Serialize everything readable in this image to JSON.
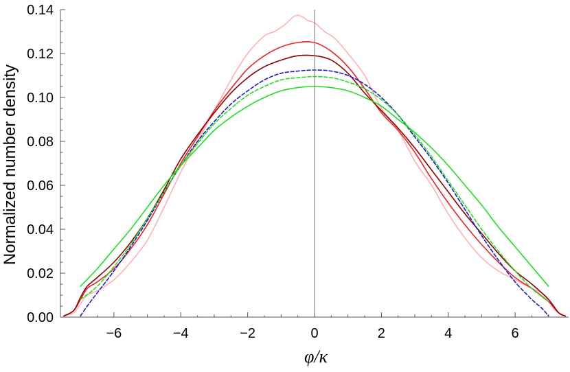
{
  "chart_data": {
    "type": "line",
    "title": "",
    "xlabel": "φ/κ",
    "ylabel": "Normalized number density",
    "xlim": [
      -7.6,
      7.6
    ],
    "ylim": [
      0.0,
      0.14
    ],
    "x_ticks": [
      -6,
      -4,
      -2,
      0,
      2,
      4,
      6
    ],
    "x_tick_labels": [
      "−6",
      "−4",
      "−2",
      "0",
      "2",
      "4",
      "6"
    ],
    "y_ticks": [
      0.0,
      0.02,
      0.04,
      0.06,
      0.08,
      0.1,
      0.12,
      0.14
    ],
    "y_tick_labels": [
      "0.00",
      "0.02",
      "0.04",
      "0.06",
      "0.08",
      "0.10",
      "0.12",
      "0.14"
    ],
    "grid": false,
    "legend": "none",
    "series": [
      {
        "color": "#ffb0b0",
        "dash": "solid",
        "x": [
          -7.5,
          -7.2,
          -7.0,
          -6.8,
          -6.5,
          -6.0,
          -5.5,
          -5.0,
          -4.5,
          -4.0,
          -3.5,
          -3.0,
          -2.5,
          -2.0,
          -1.5,
          -1.2,
          -0.9,
          -0.6,
          -0.4,
          -0.2,
          0.0,
          0.3,
          0.6,
          1.0,
          1.5,
          2.0,
          2.5,
          3.0,
          3.5,
          4.0,
          4.5,
          5.0,
          5.5,
          6.0,
          6.5,
          6.8,
          7.0,
          7.2,
          7.5
        ],
        "y": [
          0.0005,
          0.002,
          0.006,
          0.01,
          0.012,
          0.017,
          0.025,
          0.035,
          0.05,
          0.066,
          0.08,
          0.094,
          0.108,
          0.12,
          0.128,
          0.13,
          0.133,
          0.137,
          0.137,
          0.135,
          0.134,
          0.13,
          0.127,
          0.12,
          0.11,
          0.095,
          0.085,
          0.071,
          0.06,
          0.047,
          0.036,
          0.027,
          0.021,
          0.017,
          0.013,
          0.011,
          0.008,
          0.003,
          0.0005
        ]
      },
      {
        "color": "#ee2222",
        "dash": "solid",
        "x": [
          -7.5,
          -7.2,
          -7.0,
          -6.8,
          -6.5,
          -6.0,
          -5.5,
          -5.0,
          -4.5,
          -4.0,
          -3.5,
          -3.0,
          -2.5,
          -2.0,
          -1.5,
          -1.0,
          -0.5,
          0.0,
          0.5,
          1.0,
          1.5,
          2.0,
          2.5,
          3.0,
          3.5,
          4.0,
          4.5,
          5.0,
          5.5,
          6.0,
          6.5,
          7.0,
          7.3,
          7.5
        ],
        "y": [
          0.0005,
          0.003,
          0.008,
          0.013,
          0.016,
          0.022,
          0.031,
          0.042,
          0.056,
          0.07,
          0.082,
          0.094,
          0.104,
          0.113,
          0.119,
          0.123,
          0.125,
          0.125,
          0.121,
          0.114,
          0.104,
          0.093,
          0.085,
          0.075,
          0.063,
          0.052,
          0.042,
          0.033,
          0.025,
          0.018,
          0.013,
          0.007,
          0.002,
          0.0005
        ]
      },
      {
        "color": "#8b0000",
        "dash": "solid",
        "x": [
          -7.5,
          -7.2,
          -7.0,
          -6.8,
          -6.5,
          -6.0,
          -5.5,
          -5.0,
          -4.5,
          -4.0,
          -3.5,
          -3.0,
          -2.5,
          -2.0,
          -1.5,
          -1.0,
          -0.5,
          0.0,
          0.5,
          1.0,
          1.5,
          2.0,
          2.5,
          3.0,
          3.5,
          4.0,
          4.5,
          5.0,
          5.5,
          6.0,
          6.5,
          7.0,
          7.3,
          7.5
        ],
        "y": [
          0.0005,
          0.003,
          0.009,
          0.014,
          0.018,
          0.025,
          0.034,
          0.045,
          0.058,
          0.072,
          0.083,
          0.093,
          0.102,
          0.109,
          0.114,
          0.117,
          0.119,
          0.119,
          0.117,
          0.111,
          0.102,
          0.094,
          0.086,
          0.077,
          0.067,
          0.057,
          0.047,
          0.038,
          0.029,
          0.021,
          0.015,
          0.008,
          0.002,
          0.0005
        ]
      },
      {
        "color": "#1a1acc",
        "dash": "dashed",
        "x": [
          -7.0,
          -6.8,
          -6.5,
          -6.0,
          -5.5,
          -5.0,
          -4.5,
          -4.0,
          -3.5,
          -3.0,
          -2.5,
          -2.0,
          -1.5,
          -1.0,
          -0.5,
          0.0,
          0.5,
          1.0,
          1.5,
          2.0,
          2.5,
          3.0,
          3.5,
          4.0,
          4.5,
          5.0,
          5.5,
          6.0,
          6.5,
          6.8,
          7.0
        ],
        "y": [
          0.0005,
          0.005,
          0.011,
          0.021,
          0.032,
          0.044,
          0.057,
          0.069,
          0.08,
          0.089,
          0.097,
          0.103,
          0.108,
          0.111,
          0.112,
          0.1125,
          0.112,
          0.11,
          0.106,
          0.1,
          0.092,
          0.082,
          0.072,
          0.061,
          0.049,
          0.037,
          0.026,
          0.016,
          0.008,
          0.004,
          0.0005
        ]
      },
      {
        "color": "#22dd22",
        "dash": "dashed",
        "x": [
          -7.0,
          -6.5,
          -6.0,
          -5.5,
          -5.0,
          -4.5,
          -4.0,
          -3.5,
          -3.0,
          -2.5,
          -2.0,
          -1.5,
          -1.0,
          -0.5,
          0.0,
          0.5,
          1.0,
          1.5,
          2.0,
          2.5,
          3.0,
          3.5,
          4.0,
          4.5,
          5.0,
          5.5,
          6.0,
          6.5,
          7.0
        ],
        "y": [
          0.008,
          0.014,
          0.023,
          0.033,
          0.045,
          0.057,
          0.069,
          0.079,
          0.088,
          0.095,
          0.101,
          0.105,
          0.108,
          0.109,
          0.1095,
          0.109,
          0.107,
          0.104,
          0.099,
          0.092,
          0.083,
          0.073,
          0.062,
          0.051,
          0.04,
          0.03,
          0.021,
          0.013,
          0.007
        ]
      },
      {
        "color": "#22dd22",
        "dash": "solid",
        "x": [
          -7.0,
          -6.5,
          -6.0,
          -5.5,
          -5.0,
          -4.5,
          -4.0,
          -3.5,
          -3.0,
          -2.5,
          -2.0,
          -1.5,
          -1.0,
          -0.5,
          0.0,
          0.5,
          1.0,
          1.5,
          2.0,
          2.5,
          3.0,
          3.5,
          4.0,
          4.5,
          5.0,
          5.5,
          6.0,
          6.5,
          7.0
        ],
        "y": [
          0.014,
          0.022,
          0.031,
          0.04,
          0.05,
          0.06,
          0.069,
          0.077,
          0.085,
          0.091,
          0.096,
          0.1,
          0.103,
          0.1045,
          0.105,
          0.1045,
          0.103,
          0.1,
          0.096,
          0.09,
          0.084,
          0.077,
          0.069,
          0.06,
          0.051,
          0.041,
          0.032,
          0.023,
          0.014
        ]
      }
    ]
  }
}
